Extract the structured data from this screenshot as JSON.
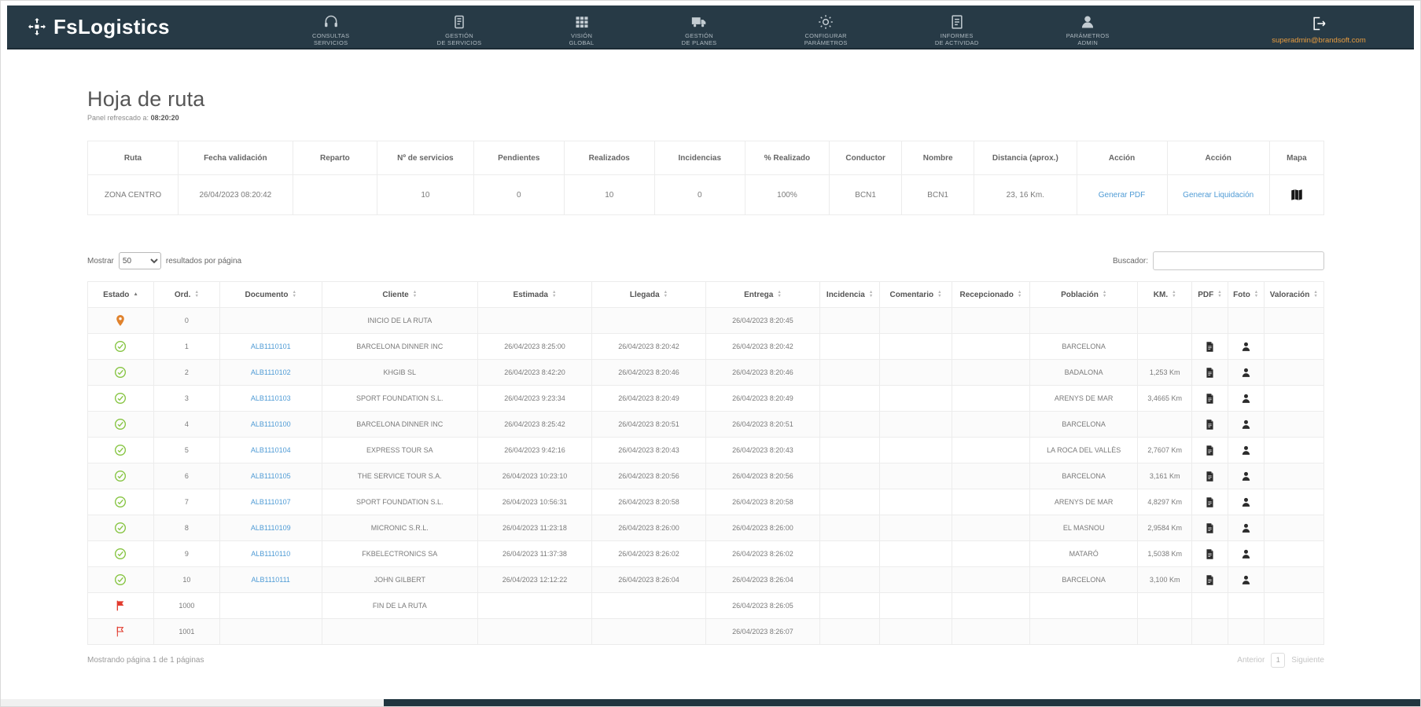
{
  "navbar": {
    "logo_text": "FsLogistics",
    "items": [
      {
        "line1": "CONSULTAS",
        "line2": "SERVICIOS"
      },
      {
        "line1": "GESTIÓN",
        "line2": "DE SERVICIOS"
      },
      {
        "line1": "VISIÓN",
        "line2": "GLOBAL"
      },
      {
        "line1": "GESTIÓN",
        "line2": "DE PLANES"
      },
      {
        "line1": "CONFIGURAR",
        "line2": "PARÁMETROS"
      },
      {
        "line1": "INFORMES",
        "line2": "DE ACTIVIDAD"
      },
      {
        "line1": "PARÁMETROS",
        "line2": "ADMIN"
      }
    ],
    "user_email": "superadmin@brandsoft.com"
  },
  "page": {
    "title": "Hoja de ruta",
    "subtitle_prefix": "Panel refrescado a:",
    "subtitle_time": "08:20:20"
  },
  "summary_table": {
    "headers": [
      "Ruta",
      "Fecha validación",
      "Reparto",
      "Nº de servicios",
      "Pendientes",
      "Realizados",
      "Incidencias",
      "% Realizado",
      "Conductor",
      "Nombre",
      "Distancia (aprox.)",
      "Acción",
      "Acción",
      "Mapa"
    ],
    "row": {
      "ruta": "ZONA CENTRO",
      "fecha_validacion": "26/04/2023 08:20:42",
      "reparto": "",
      "num_servicios": "10",
      "pendientes": "0",
      "realizados": "10",
      "incidencias": "0",
      "pct_realizado": "100%",
      "conductor": "BCN1",
      "nombre": "BCN1",
      "distancia": "23, 16 Km.",
      "accion_pdf": "Generar PDF",
      "accion_liquidacion": "Generar Liquidación"
    }
  },
  "controls": {
    "show_label": "Mostrar",
    "page_size": "50",
    "results_label": "resultados por página",
    "search_label": "Buscador:",
    "search_value": ""
  },
  "route_table": {
    "headers": [
      "Estado",
      "Ord.",
      "Documento",
      "Cliente",
      "Estimada",
      "Llegada",
      "Entrega",
      "Incidencia",
      "Comentario",
      "Recepcionado",
      "Población",
      "KM.",
      "PDF",
      "Foto",
      "Valoración"
    ],
    "rows": [
      {
        "estado": "pin",
        "ord": "0",
        "documento": "",
        "cliente": "INICIO DE LA RUTA",
        "estimada": "",
        "llegada": "",
        "entrega": "26/04/2023 8:20:45",
        "incidencia": "",
        "comentario": "",
        "recepcionado": "",
        "poblacion": "",
        "km": "",
        "pdf": false,
        "foto": false,
        "valoracion": ""
      },
      {
        "estado": "check",
        "ord": "1",
        "documento": "ALB1110101",
        "cliente": "BARCELONA DINNER INC",
        "estimada": "26/04/2023 8:25:00",
        "llegada": "26/04/2023 8:20:42",
        "entrega": "26/04/2023 8:20:42",
        "incidencia": "",
        "comentario": "",
        "recepcionado": "",
        "poblacion": "BARCELONA",
        "km": "",
        "pdf": true,
        "foto": true,
        "valoracion": ""
      },
      {
        "estado": "check",
        "ord": "2",
        "documento": "ALB1110102",
        "cliente": "KHGIB SL",
        "estimada": "26/04/2023 8:42:20",
        "llegada": "26/04/2023 8:20:46",
        "entrega": "26/04/2023 8:20:46",
        "incidencia": "",
        "comentario": "",
        "recepcionado": "",
        "poblacion": "BADALONA",
        "km": "1,253 Km",
        "pdf": true,
        "foto": true,
        "valoracion": ""
      },
      {
        "estado": "check",
        "ord": "3",
        "documento": "ALB1110103",
        "cliente": "SPORT FOUNDATION S.L.",
        "estimada": "26/04/2023 9:23:34",
        "llegada": "26/04/2023 8:20:49",
        "entrega": "26/04/2023 8:20:49",
        "incidencia": "",
        "comentario": "",
        "recepcionado": "",
        "poblacion": "ARENYS DE MAR",
        "km": "3,4665 Km",
        "pdf": true,
        "foto": true,
        "valoracion": ""
      },
      {
        "estado": "check",
        "ord": "4",
        "documento": "ALB1110100",
        "cliente": "BARCELONA DINNER INC",
        "estimada": "26/04/2023 8:25:42",
        "llegada": "26/04/2023 8:20:51",
        "entrega": "26/04/2023 8:20:51",
        "incidencia": "",
        "comentario": "",
        "recepcionado": "",
        "poblacion": "BARCELONA",
        "km": "",
        "pdf": true,
        "foto": true,
        "valoracion": ""
      },
      {
        "estado": "check",
        "ord": "5",
        "documento": "ALB1110104",
        "cliente": "EXPRESS TOUR SA",
        "estimada": "26/04/2023 9:42:16",
        "llegada": "26/04/2023 8:20:43",
        "entrega": "26/04/2023 8:20:43",
        "incidencia": "",
        "comentario": "",
        "recepcionado": "",
        "poblacion": "LA ROCA DEL VALLÈS",
        "km": "2,7607 Km",
        "pdf": true,
        "foto": true,
        "valoracion": ""
      },
      {
        "estado": "check",
        "ord": "6",
        "documento": "ALB1110105",
        "cliente": "THE SERVICE TOUR S.A.",
        "estimada": "26/04/2023 10:23:10",
        "llegada": "26/04/2023 8:20:56",
        "entrega": "26/04/2023 8:20:56",
        "incidencia": "",
        "comentario": "",
        "recepcionado": "",
        "poblacion": "BARCELONA",
        "km": "3,161 Km",
        "pdf": true,
        "foto": true,
        "valoracion": ""
      },
      {
        "estado": "check",
        "ord": "7",
        "documento": "ALB1110107",
        "cliente": "SPORT FOUNDATION S.L.",
        "estimada": "26/04/2023 10:56:31",
        "llegada": "26/04/2023 8:20:58",
        "entrega": "26/04/2023 8:20:58",
        "incidencia": "",
        "comentario": "",
        "recepcionado": "",
        "poblacion": "ARENYS DE MAR",
        "km": "4,8297 Km",
        "pdf": true,
        "foto": true,
        "valoracion": ""
      },
      {
        "estado": "check",
        "ord": "8",
        "documento": "ALB1110109",
        "cliente": "MICRONIC S.R.L.",
        "estimada": "26/04/2023 11:23:18",
        "llegada": "26/04/2023 8:26:00",
        "entrega": "26/04/2023 8:26:00",
        "incidencia": "",
        "comentario": "",
        "recepcionado": "",
        "poblacion": "EL MASNOU",
        "km": "2,9584 Km",
        "pdf": true,
        "foto": true,
        "valoracion": ""
      },
      {
        "estado": "check",
        "ord": "9",
        "documento": "ALB1110110",
        "cliente": "FKBELECTRONICS SA",
        "estimada": "26/04/2023 11:37:38",
        "llegada": "26/04/2023 8:26:02",
        "entrega": "26/04/2023 8:26:02",
        "incidencia": "",
        "comentario": "",
        "recepcionado": "",
        "poblacion": "MATARÓ",
        "km": "1,5038 Km",
        "pdf": true,
        "foto": true,
        "valoracion": ""
      },
      {
        "estado": "check",
        "ord": "10",
        "documento": "ALB1110111",
        "cliente": "JOHN GILBERT",
        "estimada": "26/04/2023 12:12:22",
        "llegada": "26/04/2023 8:26:04",
        "entrega": "26/04/2023 8:26:04",
        "incidencia": "",
        "comentario": "",
        "recepcionado": "",
        "poblacion": "BARCELONA",
        "km": "3,100 Km",
        "pdf": true,
        "foto": true,
        "valoracion": ""
      },
      {
        "estado": "flag",
        "ord": "1000",
        "documento": "",
        "cliente": "FIN DE LA RUTA",
        "estimada": "",
        "llegada": "",
        "entrega": "26/04/2023 8:26:05",
        "incidencia": "",
        "comentario": "",
        "recepcionado": "",
        "poblacion": "",
        "km": "",
        "pdf": false,
        "foto": false,
        "valoracion": ""
      },
      {
        "estado": "flag-outline",
        "ord": "1001",
        "documento": "",
        "cliente": "",
        "estimada": "",
        "llegada": "",
        "entrega": "26/04/2023 8:26:07",
        "incidencia": "",
        "comentario": "",
        "recepcionado": "",
        "poblacion": "",
        "km": "",
        "pdf": false,
        "foto": false,
        "valoracion": ""
      }
    ]
  },
  "footer": {
    "showing_text": "Mostrando página 1 de 1 páginas",
    "prev_label": "Anterior",
    "current_page": "1",
    "next_label": "Siguiente"
  },
  "icons": {
    "sort_asc": "▲",
    "sort_desc": "▼"
  },
  "colors": {
    "navbar": "#273a46",
    "link": "#4f9bd5",
    "success": "#85c440",
    "pin": "#e0822d",
    "danger": "#e23b2e",
    "email": "#e89c3f"
  }
}
